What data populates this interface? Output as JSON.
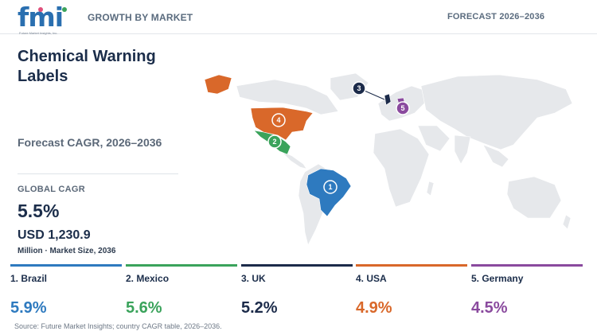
{
  "header": {
    "logo_text": "fmi",
    "logo_tagline": "Future Market Insights, Inc.",
    "left_label": "GROWTH BY MARKET",
    "right_label": "FORECAST 2026–2036"
  },
  "title": "Chemical Warning Labels",
  "subtitle": "Forecast CAGR, 2026–2036",
  "summary": {
    "cagr_label": "GLOBAL CAGR",
    "cagr_value": "5.5%",
    "market_value": "USD 1,230.9",
    "market_note": "Million · Market Size, 2036"
  },
  "colors": {
    "brazil": "#2e7abf",
    "mexico": "#3aa35b",
    "uk": "#1c2b4a",
    "usa": "#d9682a",
    "germany": "#8a4a9e",
    "land": "#e6e8eb"
  },
  "chart_data": {
    "type": "table",
    "title": "Chemical Warning Labels",
    "subtitle": "Forecast CAGR, 2026–2036",
    "columns": [
      "rank",
      "country",
      "cagr"
    ],
    "rows": [
      {
        "rank": 1,
        "country": "Brazil",
        "cagr": 5.9,
        "label": "1. Brazil",
        "value_text": "5.9%",
        "color": "#2e7abf"
      },
      {
        "rank": 2,
        "country": "Mexico",
        "cagr": 5.6,
        "label": "2. Mexico",
        "value_text": "5.6%",
        "color": "#3aa35b"
      },
      {
        "rank": 3,
        "country": "UK",
        "cagr": 5.2,
        "label": "3. UK",
        "value_text": "5.2%",
        "color": "#1c2b4a"
      },
      {
        "rank": 4,
        "country": "USA",
        "cagr": 4.9,
        "label": "4. USA",
        "value_text": "4.9%",
        "color": "#d9682a"
      },
      {
        "rank": 5,
        "country": "Germany",
        "cagr": 4.5,
        "label": "5. Germany",
        "value_text": "4.5%",
        "color": "#8a4a9e"
      }
    ],
    "map_markers": [
      "1",
      "2",
      "3",
      "4",
      "5"
    ]
  },
  "source": "Source: Future Market Insights; country CAGR table, 2026–2036."
}
